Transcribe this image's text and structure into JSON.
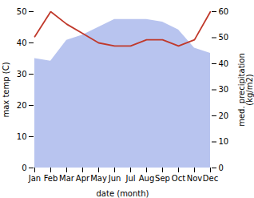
{
  "chart_data": {
    "type": "line",
    "categories": [
      "Jan",
      "Feb",
      "Mar",
      "Apr",
      "May",
      "Jun",
      "Jul",
      "Aug",
      "Sep",
      "Oct",
      "Nov",
      "Dec"
    ],
    "series": [
      {
        "type": "area",
        "axis": "y2",
        "color": "#b8c4ef",
        "values": [
          42,
          41,
          49,
          51,
          54,
          57,
          57,
          57,
          56,
          53,
          46,
          44
        ]
      },
      {
        "type": "line",
        "color": "#c0392b",
        "values": [
          42,
          50,
          46,
          43,
          40,
          39,
          39,
          41,
          41,
          39,
          41,
          50
        ]
      }
    ],
    "xlabel": "date (month)",
    "ylabel": "max temp (C)",
    "y2label": "med. precipitation\n(kg/m2)",
    "ylim": [
      0,
      50
    ],
    "yticks": [
      0,
      10,
      20,
      30,
      40,
      50
    ],
    "y2lim": [
      0,
      60
    ],
    "y2ticks": [
      0,
      10,
      20,
      30,
      40,
      50,
      60
    ],
    "grid": false
  }
}
